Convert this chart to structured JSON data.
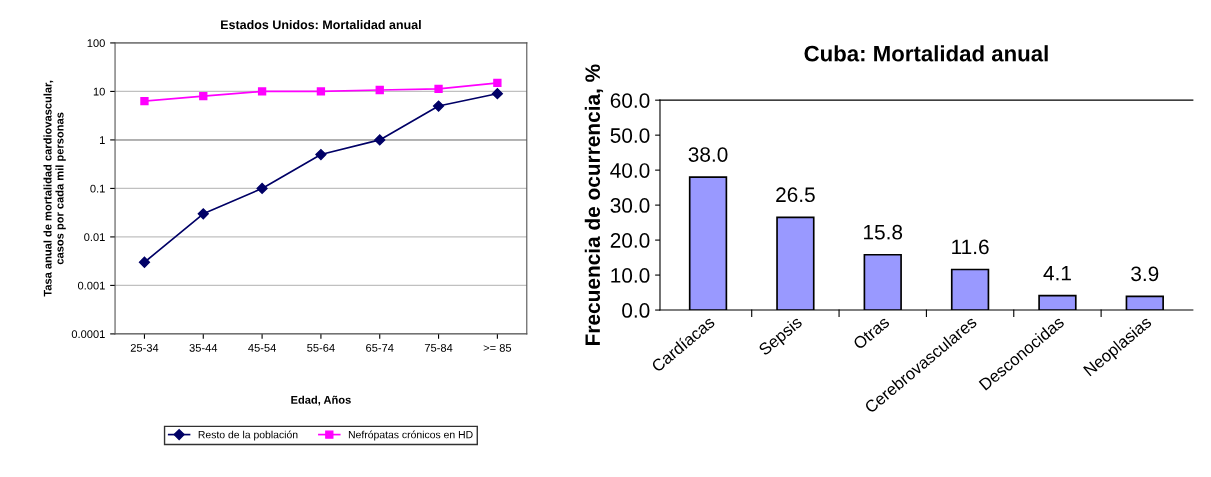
{
  "chart_data": [
    {
      "type": "line",
      "title": "Estados Unidos: Mortalidad anual",
      "xlabel": "Edad, Años",
      "ylabel": "Tasa anual de mortalidad cardiovascular,\ncasos por cada mil personas",
      "categories": [
        "25-34",
        "35-44",
        "45-54",
        "55-64",
        "65-74",
        "75-84",
        ">= 85"
      ],
      "series": [
        {
          "name": "Resto de la población",
          "color": "#000066",
          "marker": "diamond",
          "values": [
            0.003,
            0.03,
            0.1,
            0.5,
            1,
            5,
            9
          ]
        },
        {
          "name": "Nefrópatas crónicos en HD",
          "color": "#ff00ff",
          "marker": "square",
          "values": [
            6.3,
            8,
            10,
            10,
            10.7,
            11.3,
            15
          ]
        }
      ],
      "log": "y",
      "ylim": [
        0.0001,
        100
      ],
      "yticks": [
        0.0001,
        0.001,
        0.01,
        0.1,
        1,
        10,
        100
      ],
      "grid": "y",
      "legend": "bottom",
      "ref_lines": [
        {
          "axis": "y",
          "value": 1,
          "color": "#555555"
        }
      ]
    },
    {
      "type": "bar",
      "title": "Cuba: Mortalidad anual",
      "ylabel": "Frecuencia de ocurrencia, %",
      "categories": [
        "Cardíacas",
        "Sepsis",
        "Otras",
        "Cerebrovasculares",
        "Desconocidas",
        "Neoplasias"
      ],
      "values": [
        38.0,
        26.5,
        15.8,
        11.6,
        4.1,
        3.9
      ],
      "color": "#9999ff",
      "ylim": [
        0,
        60
      ],
      "yticks": [
        {
          "value": 0,
          "label": "0.0"
        },
        {
          "value": 10,
          "label": "10.0"
        },
        {
          "value": 20,
          "label": "20.0"
        },
        {
          "value": 30,
          "label": "30.0"
        },
        {
          "value": 40,
          "label": "40.0"
        },
        {
          "value": 50,
          "label": "50.0"
        },
        {
          "value": 60,
          "label": "60.0"
        }
      ],
      "value_labels": [
        "38.0",
        "26.5",
        "15.8",
        "11.6",
        "4.1",
        "3.9"
      ],
      "grid": false,
      "legend": false
    }
  ]
}
